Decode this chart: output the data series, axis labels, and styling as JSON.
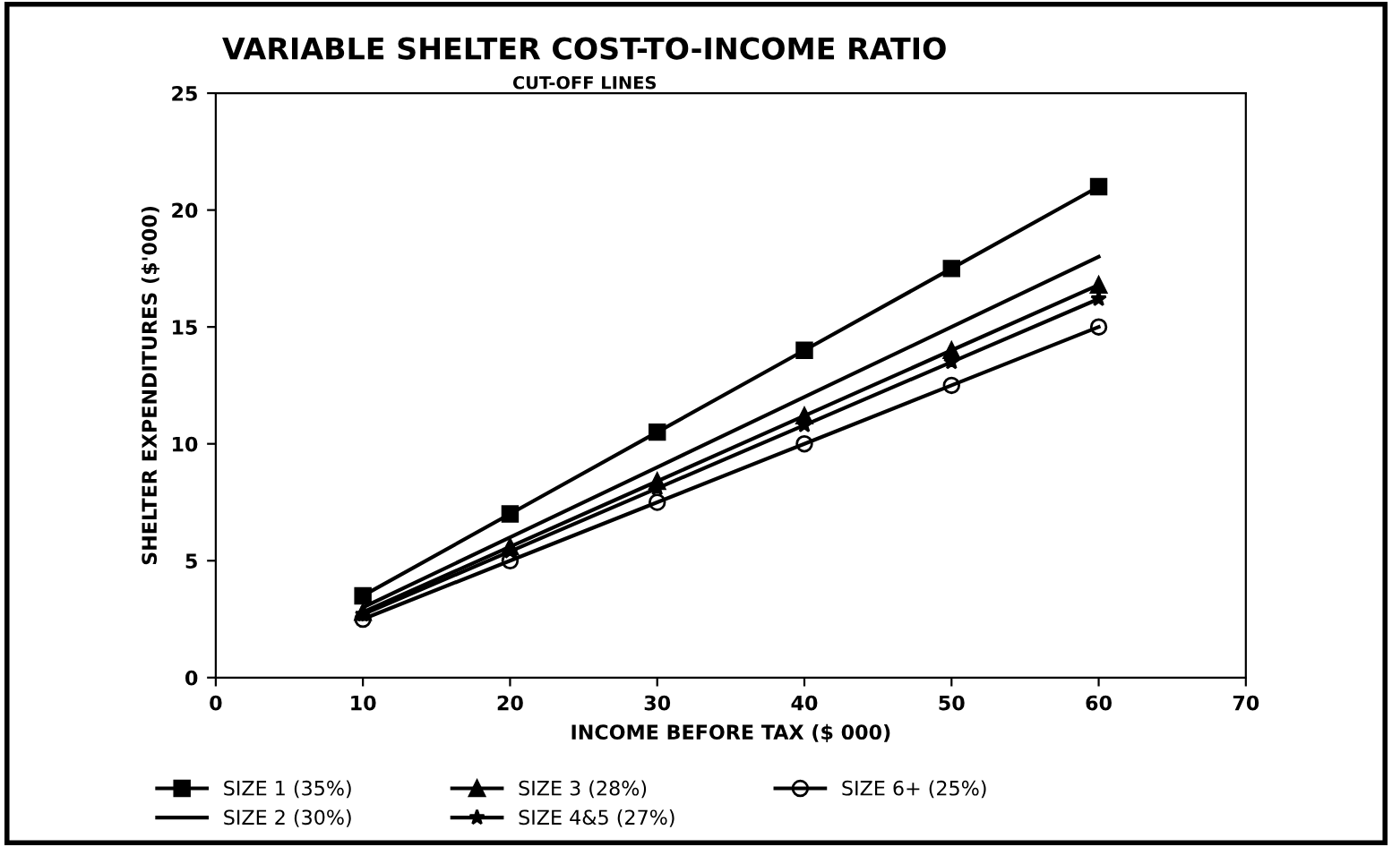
{
  "chart_data": {
    "type": "line",
    "title": "VARIABLE SHELTER COST-TO-INCOME RATIO",
    "subtitle": "CUT-OFF LINES",
    "xlabel": "INCOME BEFORE TAX ($ 000)",
    "ylabel": "SHELTER EXPENDITURES ($'000)",
    "x": [
      10,
      20,
      30,
      40,
      50,
      60
    ],
    "series": [
      {
        "name": "SIZE 1 (35%)",
        "color": "#000000",
        "marker": "square",
        "values": [
          3.5,
          7,
          10.5,
          14,
          17.5,
          21
        ]
      },
      {
        "name": "SIZE 2 (30%)",
        "color": "#000000",
        "marker": "none",
        "values": [
          3,
          6,
          9,
          12,
          15,
          18
        ]
      },
      {
        "name": "SIZE 3 (28%)",
        "color": "#000000",
        "marker": "triangle",
        "values": [
          2.8,
          5.6,
          8.4,
          11.2,
          14,
          16.8
        ]
      },
      {
        "name": "SIZE 4&5 (27%)",
        "color": "#000000",
        "marker": "star",
        "values": [
          2.7,
          5.4,
          8.1,
          10.8,
          13.5,
          16.2
        ]
      },
      {
        "name": "SIZE 6+ (25%)",
        "color": "#000000",
        "marker": "circle",
        "values": [
          2.5,
          5,
          7.5,
          10,
          12.5,
          15
        ]
      }
    ],
    "xlim": [
      0,
      70
    ],
    "xticks": [
      0,
      10,
      20,
      30,
      40,
      50,
      60,
      70
    ],
    "ylim": [
      0,
      25
    ],
    "yticks": [
      0,
      5,
      10,
      15,
      20,
      25
    ],
    "grid": false,
    "legend": "bottom",
    "line_style": "solid"
  }
}
